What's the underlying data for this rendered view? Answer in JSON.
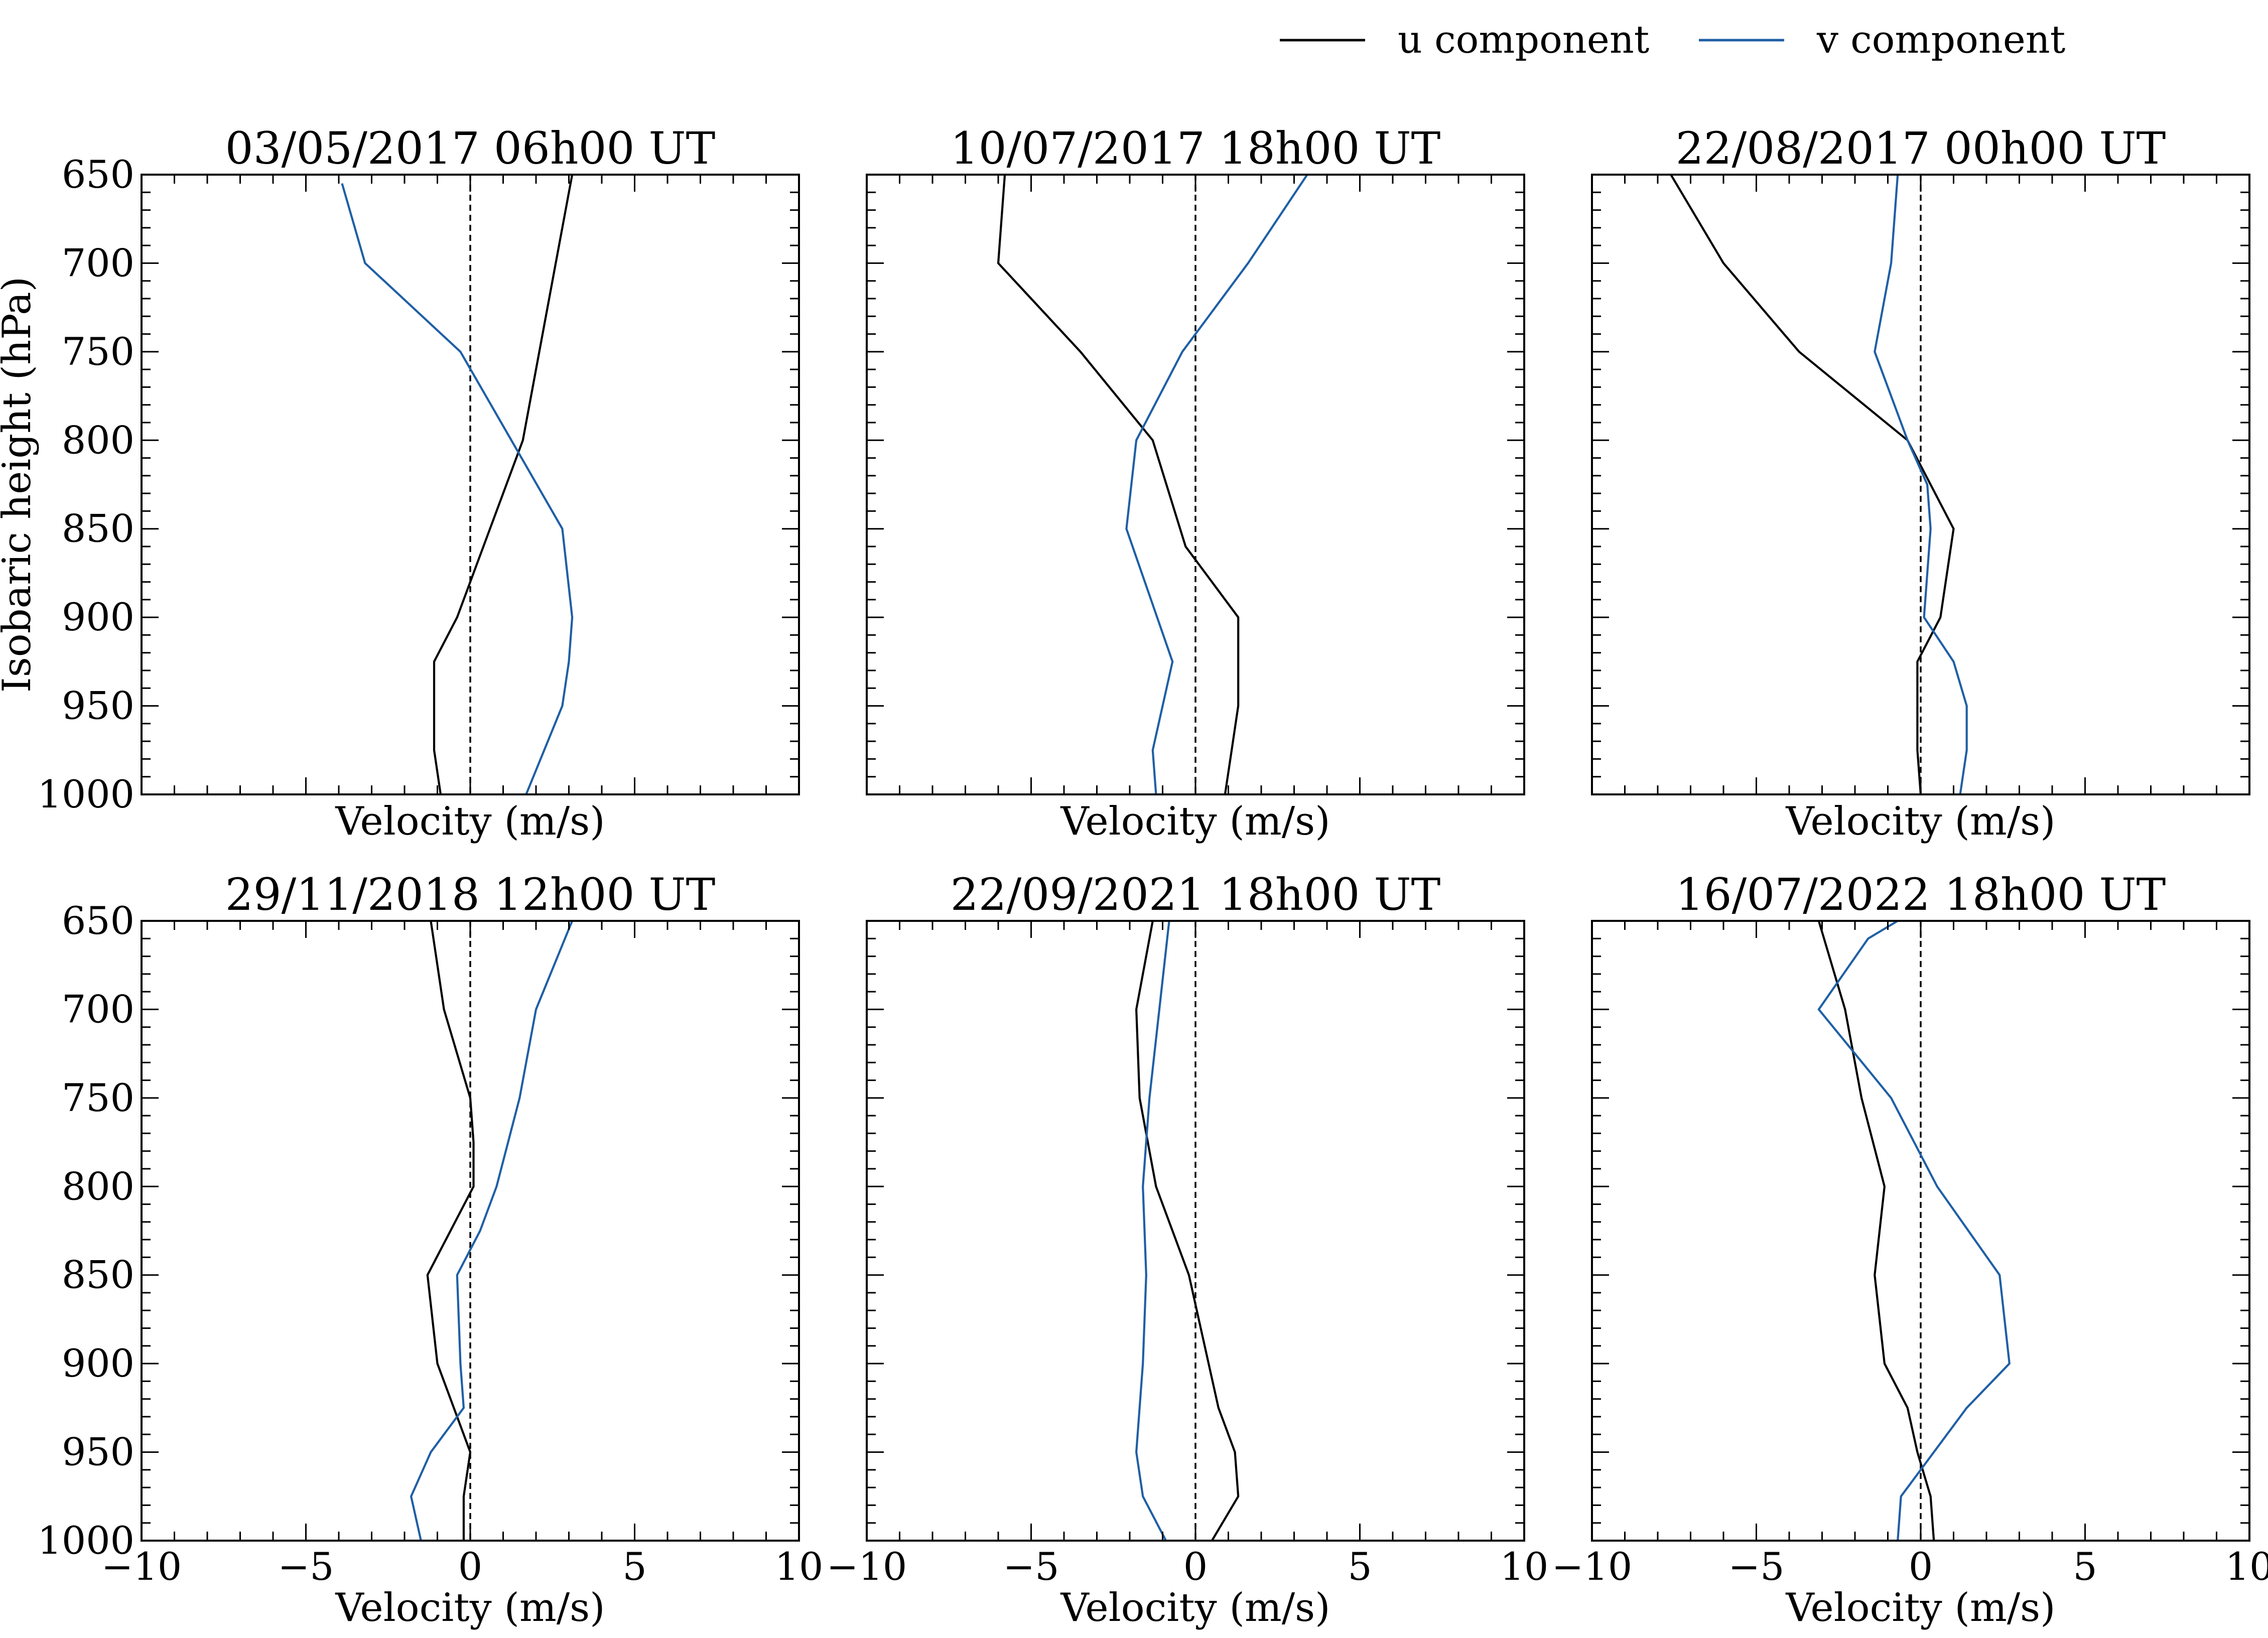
{
  "legend": {
    "position": "top-right",
    "entries": [
      {
        "label": "u component",
        "color": "#000000"
      },
      {
        "label": "v component",
        "color": "#1f5fa5"
      }
    ]
  },
  "chart_data": [
    {
      "type": "line",
      "title": "03/05/2017 06h00 UT",
      "xlabel": "Velocity (m/s)",
      "ylabel": "Isobaric height (hPa)",
      "xlim": [
        -10,
        10
      ],
      "ylim": [
        1000,
        650
      ],
      "y_inverted": true,
      "reference_line_x": 0,
      "show_xticklabels": false,
      "show_yticklabels": true,
      "series": [
        {
          "name": "u component",
          "color": "#000000",
          "x": [
            -0.9,
            -1.1,
            -1.1,
            -1.1,
            -0.4,
            0.6,
            1.6,
            2.6,
            3.1
          ],
          "y": [
            1000,
            975,
            950,
            925,
            900,
            850,
            800,
            700,
            650
          ]
        },
        {
          "name": "v component",
          "color": "#1f5fa5",
          "x": [
            1.7,
            2.8,
            3.0,
            3.1,
            2.8,
            -0.3,
            -3.2,
            -3.9
          ],
          "y": [
            1000,
            950,
            925,
            900,
            850,
            750,
            700,
            655
          ]
        }
      ]
    },
    {
      "type": "line",
      "title": "10/07/2017 18h00 UT",
      "xlabel": "Velocity (m/s)",
      "ylabel": "",
      "xlim": [
        -10,
        10
      ],
      "ylim": [
        1000,
        650
      ],
      "y_inverted": true,
      "reference_line_x": 0,
      "show_xticklabels": false,
      "show_yticklabels": false,
      "series": [
        {
          "name": "u component",
          "color": "#000000",
          "x": [
            0.9,
            1.1,
            1.3,
            1.3,
            -0.3,
            -1.3,
            -3.5,
            -6.0,
            -5.8
          ],
          "y": [
            1000,
            975,
            950,
            900,
            860,
            800,
            750,
            700,
            650
          ]
        },
        {
          "name": "v component",
          "color": "#1f5fa5",
          "x": [
            -1.2,
            -1.3,
            -0.7,
            -2.1,
            -1.8,
            -0.4,
            1.6,
            3.4
          ],
          "y": [
            1000,
            975,
            925,
            850,
            800,
            750,
            700,
            650
          ]
        }
      ]
    },
    {
      "type": "line",
      "title": "22/08/2017 00h00 UT",
      "xlabel": "Velocity (m/s)",
      "ylabel": "",
      "xlim": [
        -10,
        10
      ],
      "ylim": [
        1000,
        650
      ],
      "y_inverted": true,
      "reference_line_x": 0,
      "show_xticklabels": false,
      "show_yticklabels": false,
      "series": [
        {
          "name": "u component",
          "color": "#000000",
          "x": [
            0.0,
            -0.1,
            -0.1,
            -0.1,
            0.6,
            1.0,
            -0.4,
            -3.7,
            -6.0,
            -7.6
          ],
          "y": [
            1000,
            975,
            950,
            925,
            900,
            850,
            800,
            750,
            700,
            650
          ]
        },
        {
          "name": "v component",
          "color": "#1f5fa5",
          "x": [
            1.2,
            1.4,
            1.4,
            1.0,
            0.1,
            0.3,
            0.2,
            -0.4,
            -1.4,
            -0.9,
            -0.7
          ],
          "y": [
            1000,
            975,
            950,
            925,
            900,
            850,
            825,
            800,
            750,
            700,
            650
          ]
        }
      ]
    },
    {
      "type": "line",
      "title": "29/11/2018 12h00 UT",
      "xlabel": "Velocity (m/s)",
      "ylabel": "",
      "xlim": [
        -10,
        10
      ],
      "ylim": [
        1000,
        650
      ],
      "y_inverted": true,
      "reference_line_x": 0,
      "show_xticklabels": true,
      "show_yticklabels": true,
      "series": [
        {
          "name": "u component",
          "color": "#000000",
          "x": [
            -0.2,
            -0.2,
            0.0,
            -1.0,
            -1.3,
            0.1,
            0.1,
            0.0,
            -0.8,
            -1.2
          ],
          "y": [
            1000,
            975,
            950,
            900,
            850,
            800,
            775,
            750,
            700,
            650
          ]
        },
        {
          "name": "v component",
          "color": "#1f5fa5",
          "x": [
            -1.5,
            -1.8,
            -1.2,
            -0.2,
            -0.3,
            -0.4,
            0.3,
            0.8,
            1.5,
            2.0,
            3.1
          ],
          "y": [
            1000,
            975,
            950,
            925,
            900,
            850,
            825,
            800,
            750,
            700,
            650
          ]
        }
      ]
    },
    {
      "type": "line",
      "title": "22/09/2021 18h00 UT",
      "xlabel": "Velocity (m/s)",
      "ylabel": "",
      "xlim": [
        -10,
        10
      ],
      "ylim": [
        1000,
        650
      ],
      "y_inverted": true,
      "reference_line_x": 0,
      "show_xticklabels": true,
      "show_yticklabels": false,
      "series": [
        {
          "name": "u component",
          "color": "#000000",
          "x": [
            0.5,
            1.3,
            1.2,
            0.7,
            -0.2,
            -1.2,
            -1.7,
            -1.8,
            -1.8,
            -1.3
          ],
          "y": [
            1000,
            975,
            950,
            925,
            850,
            800,
            750,
            700,
            700,
            650
          ]
        },
        {
          "name": "v component",
          "color": "#1f5fa5",
          "x": [
            -0.9,
            -1.6,
            -1.8,
            -1.6,
            -1.5,
            -1.6,
            -1.4,
            -0.8
          ],
          "y": [
            1000,
            975,
            950,
            900,
            850,
            800,
            750,
            650
          ]
        }
      ]
    },
    {
      "type": "line",
      "title": "16/07/2022 18h00 UT",
      "xlabel": "Velocity (m/s)",
      "ylabel": "",
      "xlim": [
        -10,
        10
      ],
      "ylim": [
        1000,
        650
      ],
      "y_inverted": true,
      "reference_line_x": 0,
      "show_xticklabels": true,
      "show_yticklabels": false,
      "series": [
        {
          "name": "u component",
          "color": "#000000",
          "x": [
            0.4,
            0.3,
            -0.1,
            -0.4,
            -1.1,
            -1.4,
            -1.1,
            -1.8,
            -2.3,
            -3.1
          ],
          "y": [
            1000,
            975,
            950,
            925,
            900,
            850,
            800,
            750,
            700,
            650
          ]
        },
        {
          "name": "v component",
          "color": "#1f5fa5",
          "x": [
            -0.7,
            -0.6,
            0.4,
            1.4,
            2.7,
            2.4,
            0.5,
            -0.9,
            -3.1,
            -1.6,
            -0.7
          ],
          "y": [
            1000,
            975,
            950,
            925,
            900,
            850,
            800,
            750,
            700,
            660,
            650
          ]
        }
      ]
    }
  ]
}
